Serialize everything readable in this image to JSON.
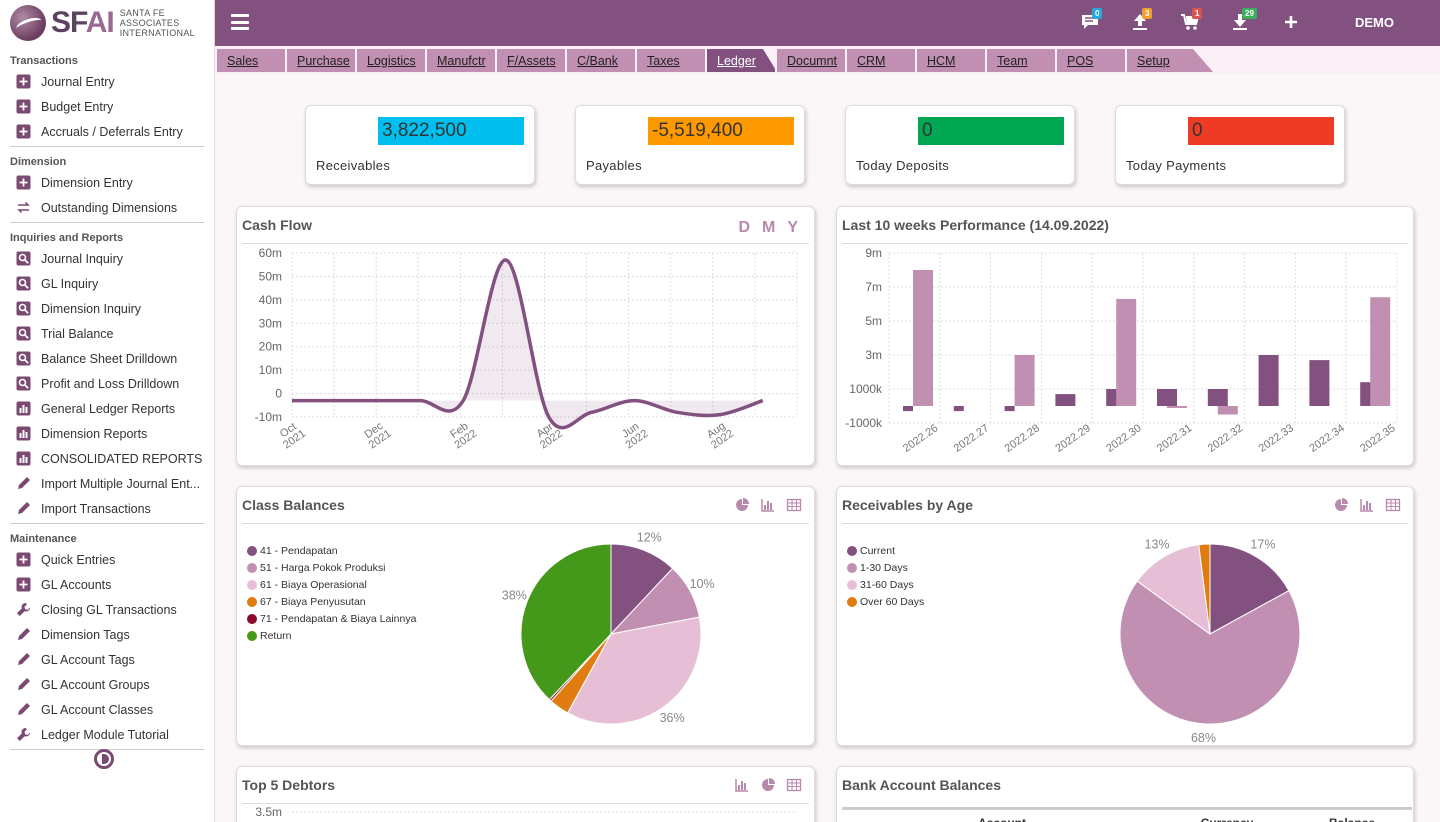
{
  "brand": {
    "name_main": "SF",
    "name_accent": "AI",
    "subtitle_l1": "SANTA FE",
    "subtitle_l2": "ASSOCIATES",
    "subtitle_l3": "INTERNATIONAL"
  },
  "sidebar": {
    "sections": [
      {
        "title": "Transactions",
        "items": [
          {
            "label": "Journal Entry",
            "icon": "plus-square-icon"
          },
          {
            "label": "Budget Entry",
            "icon": "plus-square-icon"
          },
          {
            "label": "Accruals / Deferrals Entry",
            "icon": "plus-square-icon"
          }
        ]
      },
      {
        "title": "Dimension",
        "items": [
          {
            "label": "Dimension Entry",
            "icon": "plus-square-icon"
          },
          {
            "label": "Outstanding Dimensions",
            "icon": "swap-icon"
          }
        ]
      },
      {
        "title": "Inquiries and Reports",
        "items": [
          {
            "label": "Journal Inquiry",
            "icon": "search-icon"
          },
          {
            "label": "GL Inquiry",
            "icon": "search-icon"
          },
          {
            "label": "Dimension Inquiry",
            "icon": "search-icon"
          },
          {
            "label": "Trial Balance",
            "icon": "search-icon"
          },
          {
            "label": "Balance Sheet Drilldown",
            "icon": "search-icon"
          },
          {
            "label": "Profit and Loss Drilldown",
            "icon": "search-icon"
          },
          {
            "label": "General Ledger Reports",
            "icon": "report-icon"
          },
          {
            "label": "Dimension Reports",
            "icon": "report-icon"
          },
          {
            "label": "CONSOLIDATED REPORTS",
            "icon": "report-icon"
          },
          {
            "label": "Import Multiple Journal Ent...",
            "icon": "pencil-icon"
          },
          {
            "label": "Import Transactions",
            "icon": "pencil-icon"
          }
        ]
      },
      {
        "title": "Maintenance",
        "items": [
          {
            "label": "Quick Entries",
            "icon": "plus-square-icon"
          },
          {
            "label": "GL Accounts",
            "icon": "plus-square-icon"
          },
          {
            "label": "Closing GL Transactions",
            "icon": "wrench-icon"
          },
          {
            "label": "Dimension Tags",
            "icon": "pencil-icon"
          },
          {
            "label": "GL Account Tags",
            "icon": "pencil-icon"
          },
          {
            "label": "GL Account Groups",
            "icon": "pencil-icon"
          },
          {
            "label": "GL Account Classes",
            "icon": "pencil-icon"
          },
          {
            "label": "Ledger Module Tutorial",
            "icon": "wrench-icon"
          }
        ]
      }
    ]
  },
  "topbar": {
    "user": "DEMO",
    "badges": {
      "messages": "0",
      "uploads": "3",
      "cart": "1",
      "downloads": "29"
    },
    "badge_colors": {
      "messages": "#29a8e0",
      "uploads": "#f0a030",
      "cart": "#d9534f",
      "downloads": "#3cae5c"
    }
  },
  "tabs": [
    {
      "label": "Sales"
    },
    {
      "label": "Purchase"
    },
    {
      "label": "Logistics"
    },
    {
      "label": "Manufctr"
    },
    {
      "label": "F/Assets"
    },
    {
      "label": "C/Bank"
    },
    {
      "label": "Taxes"
    },
    {
      "label": "Ledger",
      "active": true
    },
    {
      "label": "Documnt"
    },
    {
      "label": "CRM"
    },
    {
      "label": "HCM"
    },
    {
      "label": "Team"
    },
    {
      "label": "POS"
    },
    {
      "label": "Setup"
    }
  ],
  "stats": [
    {
      "value": "3,822,500",
      "label": "Receivables",
      "color": "#00bfef"
    },
    {
      "value": "-5,519,400",
      "label": "Payables",
      "color": "#ff9900"
    },
    {
      "value": "0",
      "label": "Today Deposits",
      "color": "#00a854"
    },
    {
      "value": "0",
      "label": "Today Payments",
      "color": "#ee3b24"
    }
  ],
  "panels": {
    "cash_flow": {
      "title": "Cash Flow",
      "periods": [
        "D",
        "M",
        "Y"
      ]
    },
    "performance": {
      "title": "Last 10 weeks Performance (14.09.2022)"
    },
    "class_balances": {
      "title": "Class Balances"
    },
    "receivables_age": {
      "title": "Receivables by Age"
    },
    "top_debtors": {
      "title": "Top 5 Debtors"
    },
    "bank_balances": {
      "title": "Bank Account Balances",
      "columns": [
        "Account",
        "Currency",
        "Balance"
      ]
    }
  },
  "chart_data": [
    {
      "type": "area",
      "title": "Cash Flow",
      "x": [
        "Oct 2021",
        "Nov 2021",
        "Dec 2021",
        "Jan 2022",
        "Feb 2022",
        "Mar 2022",
        "Apr 2022",
        "May 2022",
        "Jun 2022",
        "Jul 2022",
        "Aug 2022",
        "Sep 2022"
      ],
      "xticks": [
        "Oct 2021",
        "Dec 2021",
        "Feb 2022",
        "Apr 2022",
        "Jun 2022",
        "Aug 2022"
      ],
      "values": [
        -3,
        -3,
        -3,
        -3,
        -3,
        57,
        -10,
        -8,
        -3,
        -8,
        -9,
        -3
      ],
      "yticks": [
        "60m",
        "50m",
        "40m",
        "30m",
        "20m",
        "10m",
        "0",
        "-10m"
      ],
      "ylim": [
        -10,
        60
      ],
      "unit": "m",
      "color": "#835180"
    },
    {
      "type": "bar",
      "title": "Last 10 weeks Performance (14.09.2022)",
      "categories": [
        "2022.26",
        "2022.27",
        "2022.28",
        "2022.29",
        "2022.30",
        "2022.31",
        "2022.32",
        "2022.33",
        "2022.34",
        "2022.35"
      ],
      "series": [
        {
          "values": [
            -0.3,
            -0.3,
            -0.3,
            0.7,
            1.0,
            1.0,
            1.0,
            3.0,
            2.7,
            1.4
          ],
          "color": "#835180"
        },
        {
          "values": [
            8.0,
            0,
            3.0,
            0,
            6.3,
            -0.1,
            -0.5,
            0,
            0,
            6.4
          ],
          "color": "#c08fb1"
        }
      ],
      "yticks": [
        "9m",
        "7m",
        "5m",
        "3m",
        "1000k",
        "-1000k"
      ],
      "ylim": [
        -1,
        9
      ]
    },
    {
      "type": "pie",
      "title": "Class Balances",
      "categories": [
        "41 - Pendapatan",
        "51 - Harga Pokok Produksi",
        "61 - Biaya Operasional",
        "67 - Biaya Penyusutan",
        "71 - Pendapatan & Biaya Lainnya",
        "Return"
      ],
      "values": [
        12,
        10,
        36,
        3.6,
        0.4,
        38
      ],
      "labels": [
        "12%",
        "10%",
        "36%",
        "",
        "",
        "38%"
      ],
      "colors": [
        "#835180",
        "#c08fb1",
        "#e6bfd6",
        "#e07c10",
        "#8a0a2e",
        "#44981a"
      ]
    },
    {
      "type": "pie",
      "title": "Receivables by Age",
      "categories": [
        "Current",
        "1-30 Days",
        "31-60 Days",
        "Over 60 Days"
      ],
      "values": [
        17,
        68,
        13,
        2
      ],
      "labels": [
        "17%",
        "68%",
        "13%",
        ""
      ],
      "colors": [
        "#835180",
        "#c08fb1",
        "#e6bfd6",
        "#e07c10"
      ]
    },
    {
      "type": "bar",
      "title": "Top 5 Debtors",
      "yticks": [
        "3.5m"
      ]
    }
  ]
}
